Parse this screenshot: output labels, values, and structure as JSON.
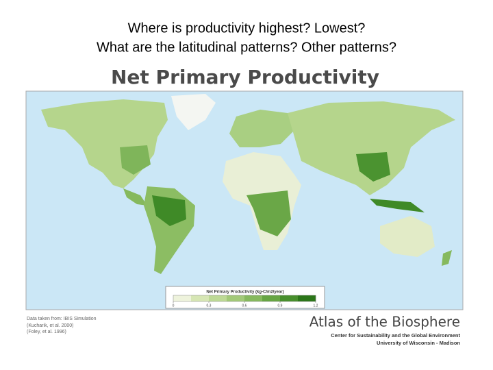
{
  "slide": {
    "questions": [
      "Where is productivity highest? Lowest?",
      "What are the latitudinal patterns? Other patterns?"
    ]
  },
  "map": {
    "title": "Net Primary Productivity",
    "legend": {
      "title": "Net Primary Productivity (kg-C/m2/year)",
      "range": [
        0,
        1.2
      ],
      "ticks": [
        0,
        0.3,
        0.6,
        0.9,
        1.2
      ],
      "colors": [
        "#eef3dc",
        "#d6e6b4",
        "#bdd995",
        "#a2c978",
        "#86b95d",
        "#66a543",
        "#478f2c",
        "#2b7619"
      ]
    },
    "credits": [
      "Data taken from: IBIS Simulation",
      "(Kucharik, et al. 2000)",
      "(Foley, et al. 1996)"
    ]
  },
  "branding": {
    "name": "Atlas of the Biosphere",
    "lines": [
      "Center for Sustainability and the Global Environment",
      "University of Wisconsin - Madison"
    ]
  }
}
